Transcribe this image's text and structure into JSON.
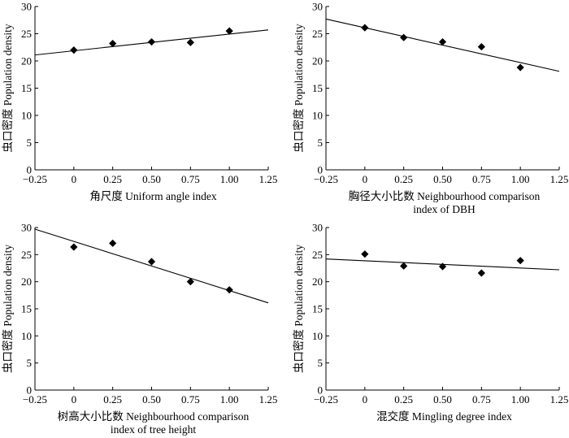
{
  "chart_data": [
    {
      "type": "scatter",
      "xlabel": [
        "角尺度 Uniform angle index"
      ],
      "ylabel": "虫口密度 Population density",
      "xlim": [
        -0.25,
        1.25
      ],
      "ylim": [
        0,
        30
      ],
      "xticks": [
        "−0.25",
        "0",
        "0.25",
        "0.50",
        "0.75",
        "1.00",
        "1.25"
      ],
      "yticks": [
        "0",
        "5",
        "10",
        "15",
        "20",
        "25",
        "30"
      ],
      "points": {
        "x": [
          0,
          0.25,
          0.5,
          0.75,
          1.0
        ],
        "y": [
          22.0,
          23.2,
          23.5,
          23.4,
          25.5
        ]
      },
      "trendline": {
        "x": [
          -0.25,
          1.25
        ],
        "y": [
          21.1,
          25.7
        ]
      }
    },
    {
      "type": "scatter",
      "xlabel": [
        "胸径大小比数 Neighbourhood comparison",
        "index of DBH"
      ],
      "ylabel": "虫口密度 Population density",
      "xlim": [
        -0.25,
        1.25
      ],
      "ylim": [
        0,
        30
      ],
      "xticks": [
        "−0.25",
        "0",
        "0.25",
        "0.50",
        "0.75",
        "1.00",
        "1.25"
      ],
      "yticks": [
        "0",
        "5",
        "10",
        "15",
        "20",
        "25",
        "30"
      ],
      "points": {
        "x": [
          0,
          0.25,
          0.5,
          0.75,
          1.0
        ],
        "y": [
          26.1,
          24.3,
          23.5,
          22.6,
          18.8
        ]
      },
      "trendline": {
        "x": [
          -0.25,
          1.25
        ],
        "y": [
          27.7,
          18.1
        ]
      }
    },
    {
      "type": "scatter",
      "xlabel": [
        "树高大小比数 Neighbourhood comparison",
        "index of tree height"
      ],
      "ylabel": "虫口密度 Population density",
      "xlim": [
        -0.25,
        1.25
      ],
      "ylim": [
        0,
        30
      ],
      "xticks": [
        "−0.25",
        "0",
        "0.25",
        "0.50",
        "0.75",
        "1.00",
        "1.25"
      ],
      "yticks": [
        "0",
        "5",
        "10",
        "15",
        "20",
        "25",
        "30"
      ],
      "points": {
        "x": [
          0,
          0.25,
          0.5,
          0.75,
          1.0
        ],
        "y": [
          26.4,
          27.1,
          23.7,
          20.0,
          18.5
        ]
      },
      "trendline": {
        "x": [
          -0.25,
          1.25
        ],
        "y": [
          29.7,
          16.1
        ]
      }
    },
    {
      "type": "scatter",
      "xlabel": [
        "混交度 Mingling degree index"
      ],
      "ylabel": "虫口密度 Population density",
      "xlim": [
        -0.25,
        1.25
      ],
      "ylim": [
        0,
        30
      ],
      "xticks": [
        "−0.25",
        "0",
        "0.25",
        "0.50",
        "0.75",
        "1.00",
        "1.25"
      ],
      "yticks": [
        "0",
        "5",
        "10",
        "15",
        "20",
        "25",
        "30"
      ],
      "points": {
        "x": [
          0,
          0.25,
          0.5,
          0.75,
          1.0
        ],
        "y": [
          25.1,
          22.9,
          22.8,
          21.6,
          23.9
        ]
      },
      "trendline": {
        "x": [
          -0.25,
          1.25
        ],
        "y": [
          24.2,
          22.2
        ]
      }
    }
  ]
}
